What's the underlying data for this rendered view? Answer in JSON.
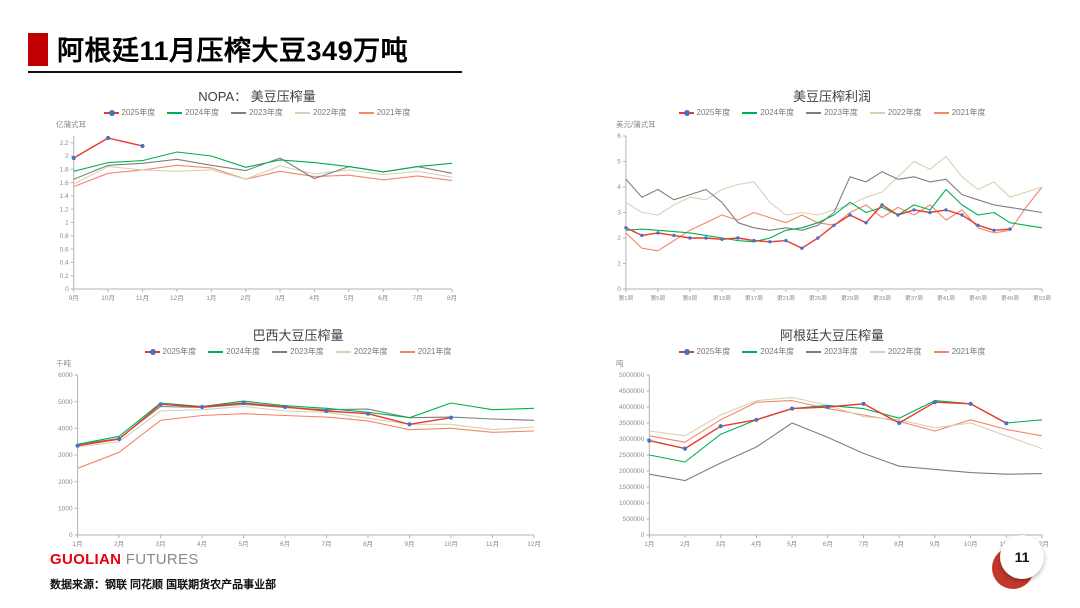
{
  "slide": {
    "title": "阿根廷11月压榨大豆349万吨",
    "page_number": "11",
    "brand": {
      "red": "GUOLIAN",
      "gray": "FUTURES"
    },
    "data_source": "数据来源：钢联 同花顺 国联期货农产品事业部"
  },
  "colors": {
    "accent_red": "#c00000",
    "s2025_line": "#e8392e",
    "s2025_dot": "#4472c4",
    "s2024": "#00b050",
    "s2023": "#7f7f7f",
    "s2022": "#d6d2b4",
    "s2021": "#f2876b",
    "axis": "#b3b3b3",
    "tick_text": "#8c8c8c"
  },
  "chart_data": [
    {
      "type": "line",
      "title": "NOPA： 美豆压榨量",
      "ylabel": "亿蒲式耳",
      "categories": [
        "9月",
        "10月",
        "11月",
        "12月",
        "1月",
        "2月",
        "3月",
        "4月",
        "5月",
        "6月",
        "7月",
        "8月"
      ],
      "ylim": [
        0,
        2.3
      ],
      "yticks": [
        0,
        0.2,
        0.4,
        0.6,
        0.8,
        1,
        1.2,
        1.4,
        1.6,
        1.8,
        2,
        2.2
      ],
      "legend_position": "top",
      "grid": false,
      "series": [
        {
          "name": "2025年度",
          "color": "s2025_line",
          "marker": "s2025_dot",
          "values": [
            1.97,
            2.27,
            2.15,
            null,
            null,
            null,
            null,
            null,
            null,
            null,
            null,
            null
          ]
        },
        {
          "name": "2024年度",
          "color": "s2024",
          "values": [
            1.77,
            1.9,
            1.93,
            2.06,
            2.0,
            1.83,
            1.94,
            1.9,
            1.84,
            1.76,
            1.84,
            1.89
          ]
        },
        {
          "name": "2023年度",
          "color": "s2023",
          "values": [
            1.65,
            1.86,
            1.89,
            1.95,
            1.86,
            1.78,
            1.97,
            1.66,
            1.84,
            1.76,
            1.84,
            1.74
          ]
        },
        {
          "name": "2022年度",
          "color": "s2022",
          "values": [
            1.58,
            1.84,
            1.79,
            1.77,
            1.79,
            1.65,
            1.85,
            1.73,
            1.79,
            1.72,
            1.77,
            1.68
          ]
        },
        {
          "name": "2021年度",
          "color": "s2021",
          "values": [
            1.54,
            1.74,
            1.79,
            1.86,
            1.82,
            1.65,
            1.77,
            1.69,
            1.71,
            1.64,
            1.7,
            1.63
          ]
        }
      ]
    },
    {
      "type": "line",
      "title": "美豆压榨利润",
      "ylabel": "美元/蒲式耳",
      "x_note": "weekly series, weeks 1-53 sampled every 2 weeks",
      "xtick_labels": [
        "第1周",
        "第5周",
        "第9周",
        "第13周",
        "第17周",
        "第21周",
        "第25周",
        "第29周",
        "第33周",
        "第37周",
        "第41周",
        "第45周",
        "第49周",
        "第53周"
      ],
      "xtick_step": 2,
      "xtick_font": 5.8,
      "marker_r": 1.7,
      "ylim": [
        0,
        6
      ],
      "yticks": [
        0,
        1,
        2,
        3,
        4,
        5,
        6
      ],
      "legend_position": "top",
      "grid": false,
      "series": [
        {
          "name": "2025年度",
          "color": "s2025_line",
          "marker": "s2025_dot",
          "values": [
            2.4,
            2.1,
            2.2,
            2.1,
            2.0,
            2.0,
            1.95,
            2.0,
            1.9,
            1.85,
            1.9,
            1.6,
            2.0,
            2.5,
            2.9,
            2.6,
            3.3,
            2.9,
            3.1,
            3.0,
            3.1,
            2.9,
            2.5,
            2.3,
            2.35,
            null,
            null
          ]
        },
        {
          "name": "2024年度",
          "color": "s2024",
          "values": [
            2.3,
            2.35,
            2.3,
            2.25,
            2.2,
            2.1,
            2.0,
            1.9,
            1.85,
            2.0,
            2.3,
            2.4,
            2.6,
            2.9,
            3.4,
            3.0,
            3.2,
            2.9,
            3.3,
            3.1,
            3.9,
            3.3,
            2.9,
            3.0,
            2.6,
            2.5,
            2.4
          ]
        },
        {
          "name": "2023年度",
          "color": "s2023",
          "values": [
            4.3,
            3.6,
            3.9,
            3.5,
            3.7,
            3.9,
            3.4,
            2.6,
            2.4,
            2.3,
            2.4,
            2.3,
            2.5,
            3.0,
            4.4,
            4.2,
            4.6,
            4.3,
            4.4,
            4.2,
            4.3,
            3.7,
            3.5,
            3.3,
            3.2,
            3.1,
            3.0
          ]
        },
        {
          "name": "2022年度",
          "color": "s2022",
          "values": [
            3.4,
            3.0,
            2.9,
            3.3,
            3.6,
            3.5,
            3.9,
            4.1,
            4.2,
            3.4,
            2.9,
            3.0,
            2.9,
            3.1,
            3.3,
            3.6,
            3.8,
            4.4,
            5.0,
            4.7,
            5.2,
            4.4,
            3.9,
            4.2,
            3.6,
            3.8,
            4.0
          ]
        },
        {
          "name": "2021年度",
          "color": "s2021",
          "values": [
            2.2,
            1.6,
            1.5,
            1.9,
            2.3,
            2.6,
            2.9,
            2.7,
            3.0,
            2.8,
            2.6,
            2.9,
            2.6,
            2.5,
            3.0,
            3.3,
            2.8,
            3.2,
            2.9,
            3.3,
            2.7,
            3.1,
            2.4,
            2.2,
            2.3,
            3.2,
            4.0
          ]
        }
      ]
    },
    {
      "type": "line",
      "title": "巴西大豆压榨量",
      "ylabel": "千吨",
      "categories": [
        "1月",
        "2月",
        "3月",
        "4月",
        "5月",
        "6月",
        "7月",
        "8月",
        "9月",
        "10月",
        "11月",
        "12月"
      ],
      "ylim": [
        0,
        6000
      ],
      "yticks": [
        0,
        1000,
        2000,
        3000,
        4000,
        5000,
        6000
      ],
      "legend_position": "top",
      "grid": false,
      "series": [
        {
          "name": "2025年度",
          "color": "s2025_line",
          "marker": "s2025_dot",
          "values": [
            3350,
            3600,
            4900,
            4800,
            4950,
            4800,
            4650,
            4550,
            4150,
            4400,
            null,
            null
          ]
        },
        {
          "name": "2024年度",
          "color": "s2024",
          "values": [
            3400,
            3700,
            4950,
            4820,
            5020,
            4850,
            4750,
            4600,
            4400,
            4950,
            4700,
            4750
          ]
        },
        {
          "name": "2023年度",
          "color": "s2023",
          "values": [
            3400,
            3620,
            4820,
            4780,
            4900,
            4780,
            4700,
            4720,
            4400,
            4420,
            4350,
            4300
          ]
        },
        {
          "name": "2022年度",
          "color": "s2022",
          "values": [
            3300,
            3500,
            4650,
            4700,
            4820,
            4650,
            4600,
            4380,
            4150,
            4150,
            3950,
            4050
          ]
        },
        {
          "name": "2021年度",
          "color": "s2021",
          "values": [
            2500,
            3100,
            4300,
            4480,
            4550,
            4480,
            4420,
            4280,
            3950,
            4000,
            3850,
            3900
          ]
        }
      ]
    },
    {
      "type": "line",
      "title": "阿根廷大豆压榨量",
      "ylabel": "吨",
      "categories": [
        "1月",
        "2月",
        "3月",
        "4月",
        "5月",
        "6月",
        "7月",
        "8月",
        "9月",
        "10月",
        "11月",
        "12月"
      ],
      "ylim": [
        0,
        5000000
      ],
      "yticks": [
        0,
        500000,
        1000000,
        1500000,
        2000000,
        2500000,
        3000000,
        3500000,
        4000000,
        4500000,
        5000000
      ],
      "legend_position": "top",
      "grid": false,
      "series": [
        {
          "name": "2025年度",
          "color": "s2025_line",
          "marker": "s2025_dot",
          "values": [
            2950000,
            2700000,
            3400000,
            3600000,
            3950000,
            4000000,
            4100000,
            3500000,
            4150000,
            4100000,
            3490000,
            null
          ]
        },
        {
          "name": "2024年度",
          "color": "s2024",
          "values": [
            2500000,
            2280000,
            3150000,
            3600000,
            3950000,
            4050000,
            3950000,
            3650000,
            4200000,
            4100000,
            3500000,
            3600000
          ]
        },
        {
          "name": "2023年度",
          "color": "s2023",
          "values": [
            1900000,
            1700000,
            2250000,
            2750000,
            3500000,
            3050000,
            2550000,
            2150000,
            2050000,
            1950000,
            1900000,
            1920000
          ]
        },
        {
          "name": "2022年度",
          "color": "s2022",
          "values": [
            3250000,
            3100000,
            3750000,
            4200000,
            4300000,
            4050000,
            3700000,
            3600000,
            3350000,
            3500000,
            3100000,
            2700000
          ]
        },
        {
          "name": "2021年度",
          "color": "s2021",
          "values": [
            3100000,
            2900000,
            3600000,
            4150000,
            4200000,
            3950000,
            3750000,
            3550000,
            3250000,
            3600000,
            3300000,
            3100000
          ]
        }
      ]
    }
  ]
}
